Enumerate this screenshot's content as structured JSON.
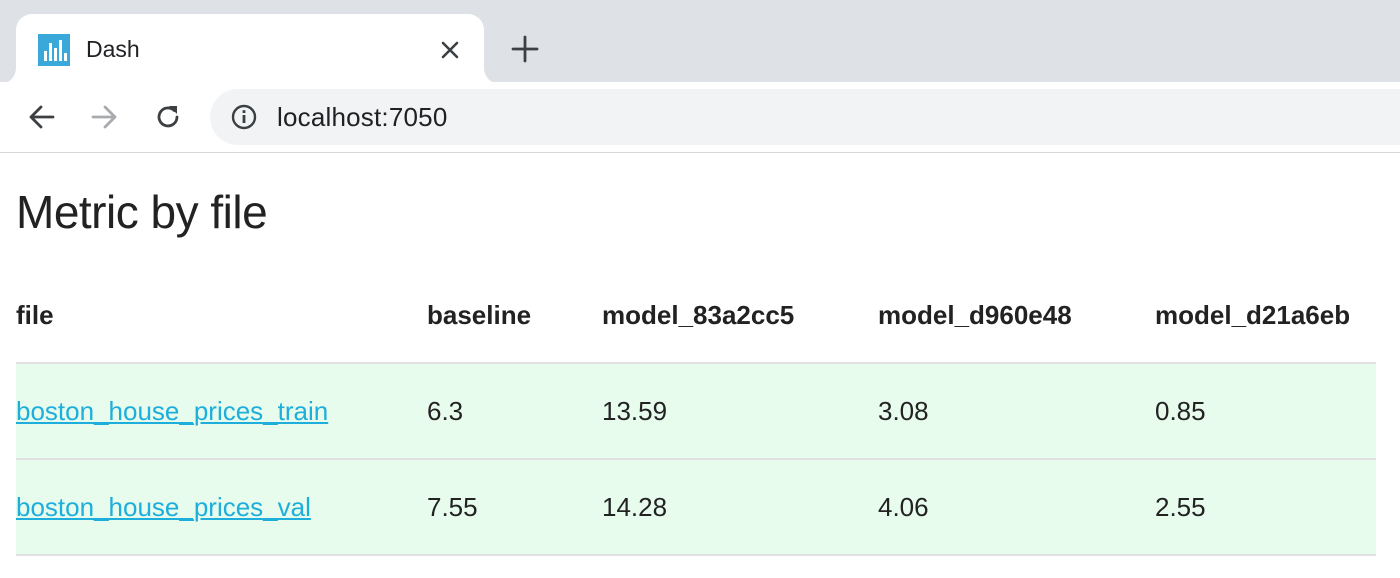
{
  "browser": {
    "tab": {
      "title": "Dash",
      "favicon": "dash-chart-icon",
      "favicon_color": "#3aa8d8"
    },
    "toolbar": {
      "back_icon": "arrow-left-icon",
      "forward_icon": "arrow-right-icon",
      "reload_icon": "reload-icon",
      "site_info_icon": "info-icon"
    },
    "url": "localhost:7050"
  },
  "page": {
    "title": "Metric by file",
    "table": {
      "columns": [
        "file",
        "baseline",
        "model_83a2cc5",
        "model_d960e48",
        "model_d21a6eb"
      ],
      "rows": [
        {
          "file": "boston_house_prices_train",
          "values": [
            "6.3",
            "13.59",
            "3.08",
            "0.85"
          ]
        },
        {
          "file": "boston_house_prices_val",
          "values": [
            "7.55",
            "14.28",
            "4.06",
            "2.55"
          ]
        }
      ],
      "row_highlight_color": "#e8fcee",
      "link_color": "#1eaedb"
    }
  }
}
